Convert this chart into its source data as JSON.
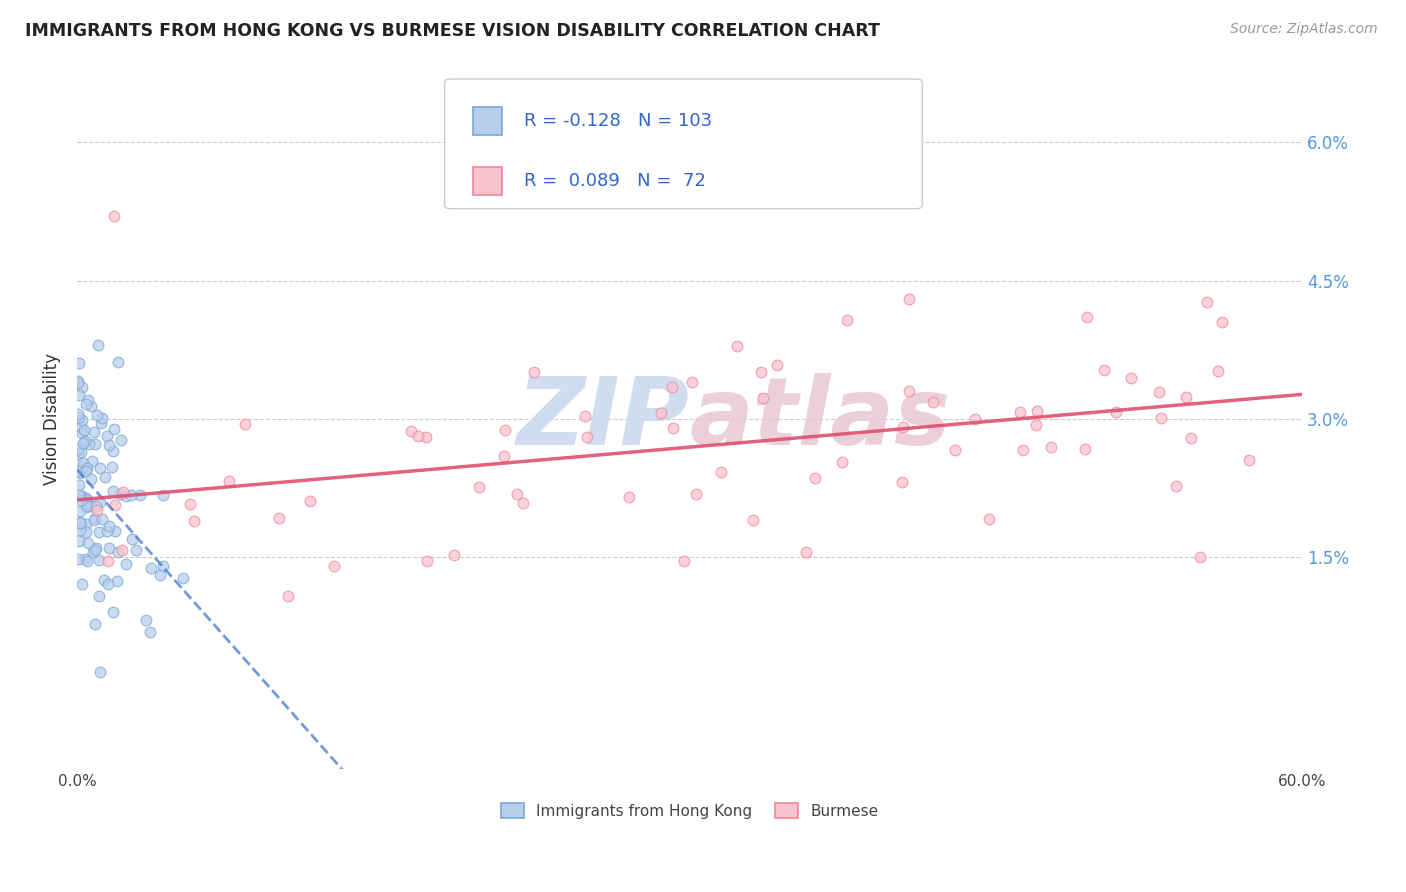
{
  "title": "IMMIGRANTS FROM HONG KONG VS BURMESE VISION DISABILITY CORRELATION CHART",
  "source": "Source: ZipAtlas.com",
  "ylabel": "Vision Disability",
  "ytick_labels": [
    "1.5%",
    "3.0%",
    "4.5%",
    "6.0%"
  ],
  "ytick_values": [
    0.015,
    0.03,
    0.045,
    0.06
  ],
  "xmin": 0.0,
  "xmax": 0.6,
  "ymin": -0.008,
  "ymax": 0.068,
  "color_hk": "#7BA7D4",
  "color_hk_line": "#4477CC",
  "color_bur": "#F4849A",
  "color_bur_line": "#E05070",
  "watermark_color": "#C8D8EC",
  "watermark_color2": "#E8C8D0",
  "marker_size": 60,
  "hk_n": 103,
  "bur_n": 72,
  "hk_r": -0.128,
  "bur_r": 0.089
}
